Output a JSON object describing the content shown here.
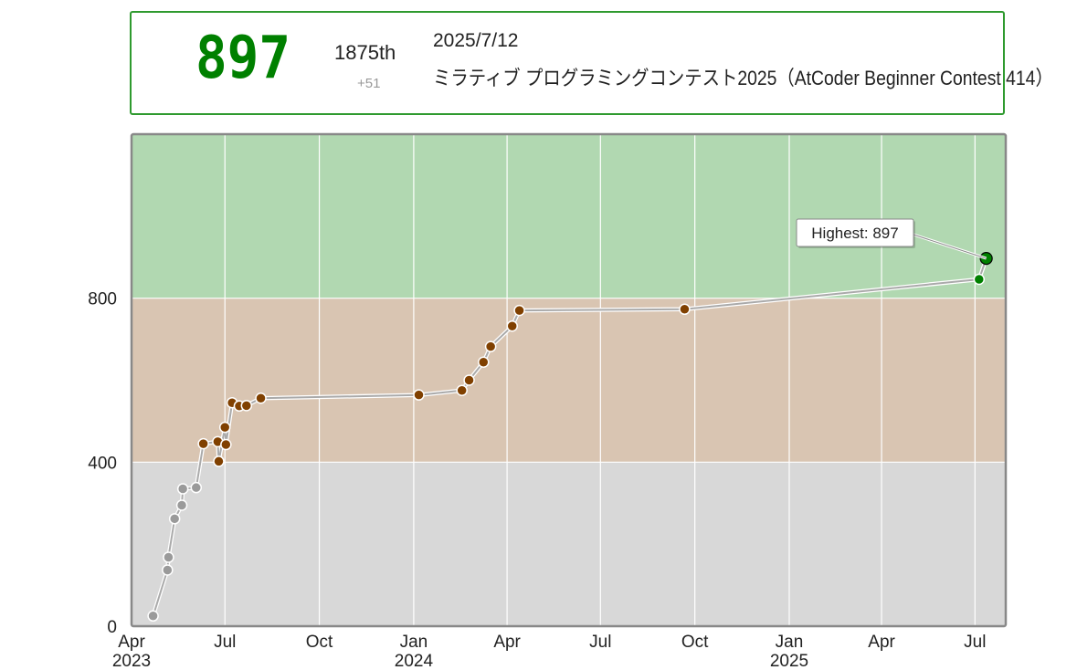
{
  "status": {
    "rating": "897",
    "rank": "1875th",
    "diff": "+51",
    "date": "2025/7/12",
    "contest": "ミラティブ プログラミングコンテスト2025（AtCoder Beginner Contest 414）"
  },
  "colors": {
    "green_band": "#b1d8b1",
    "brown_band": "#d9c5b2",
    "gray_band": "#d8d8d8",
    "gray_point": "#9a9a9a",
    "brown_point": "#804000",
    "green_point": "#008000",
    "line": "#aaaaaa",
    "frame": "#888888"
  },
  "chart_data": {
    "type": "line",
    "ylim": [
      0,
      1200
    ],
    "xlim": [
      "2023-04-01",
      "2025-07-31"
    ],
    "y_ticks": [
      "0",
      "400",
      "800"
    ],
    "y_tick_values": [
      0,
      400,
      800
    ],
    "x_ticks": [
      {
        "date": "2023-04-01",
        "label": "Apr",
        "year": "2023"
      },
      {
        "date": "2023-07-01",
        "label": "Jul",
        "year": ""
      },
      {
        "date": "2023-10-01",
        "label": "Oct",
        "year": ""
      },
      {
        "date": "2024-01-01",
        "label": "Jan",
        "year": "2024"
      },
      {
        "date": "2024-04-01",
        "label": "Apr",
        "year": ""
      },
      {
        "date": "2024-07-01",
        "label": "Jul",
        "year": ""
      },
      {
        "date": "2024-10-01",
        "label": "Oct",
        "year": ""
      },
      {
        "date": "2025-01-01",
        "label": "Jan",
        "year": "2025"
      },
      {
        "date": "2025-04-01",
        "label": "Apr",
        "year": ""
      },
      {
        "date": "2025-07-01",
        "label": "Jul",
        "year": ""
      }
    ],
    "bands": [
      {
        "from": 800,
        "to": 1200,
        "color": "#b1d8b1"
      },
      {
        "from": 400,
        "to": 800,
        "color": "#d9c5b2"
      },
      {
        "from": 0,
        "to": 400,
        "color": "#d8d8d8"
      }
    ],
    "series": [
      {
        "x": [
          "2023-04-22",
          "2023-05-06",
          "2023-05-07",
          "2023-05-13",
          "2023-05-20",
          "2023-05-21",
          "2023-06-03",
          "2023-06-10",
          "2023-06-24",
          "2023-06-25",
          "2023-07-01",
          "2023-07-02",
          "2023-07-08",
          "2023-07-15",
          "2023-07-22",
          "2023-08-05",
          "2024-01-06",
          "2024-02-17",
          "2024-02-24",
          "2024-03-09",
          "2024-03-16",
          "2024-04-06",
          "2024-04-13",
          "2024-09-21",
          "2025-07-05",
          "2025-07-12"
        ],
        "y": [
          25,
          137,
          168,
          262,
          295,
          335,
          338,
          445,
          450,
          402,
          485,
          443,
          545,
          537,
          538,
          556,
          564,
          575,
          600,
          644,
          682,
          732,
          770,
          773,
          846,
          897
        ]
      }
    ],
    "annotation": {
      "label": "Highest: 897",
      "x": "2025-07-12",
      "y": 897
    }
  }
}
